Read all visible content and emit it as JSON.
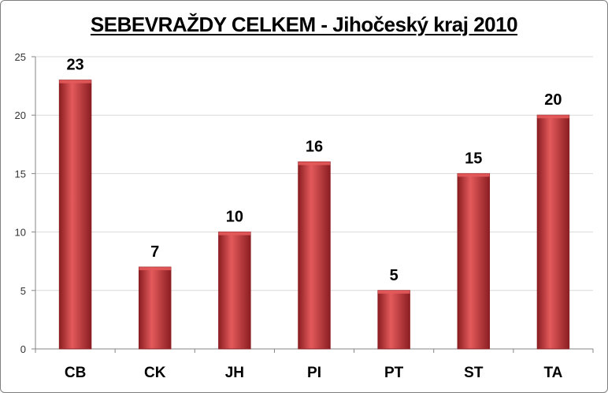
{
  "colors": {
    "bar": "#c0393b",
    "bar_light": "#e45a5b",
    "bar_dark": "#8b1e22",
    "grid": "#d9d9d9",
    "axis": "#868686"
  },
  "chart_data": {
    "type": "bar",
    "title": "SEBEVRAŽDY CELKEM - Jihočeský kraj 2010",
    "categories": [
      "CB",
      "CK",
      "JH",
      "PI",
      "PT",
      "ST",
      "TA"
    ],
    "values": [
      23,
      7,
      10,
      16,
      5,
      15,
      20
    ],
    "xlabel": "",
    "ylabel": "",
    "ylim": [
      0,
      25
    ],
    "yticks": [
      0,
      5,
      10,
      15,
      20,
      25
    ],
    "grid": true,
    "legend": "none",
    "data_labels": true
  }
}
